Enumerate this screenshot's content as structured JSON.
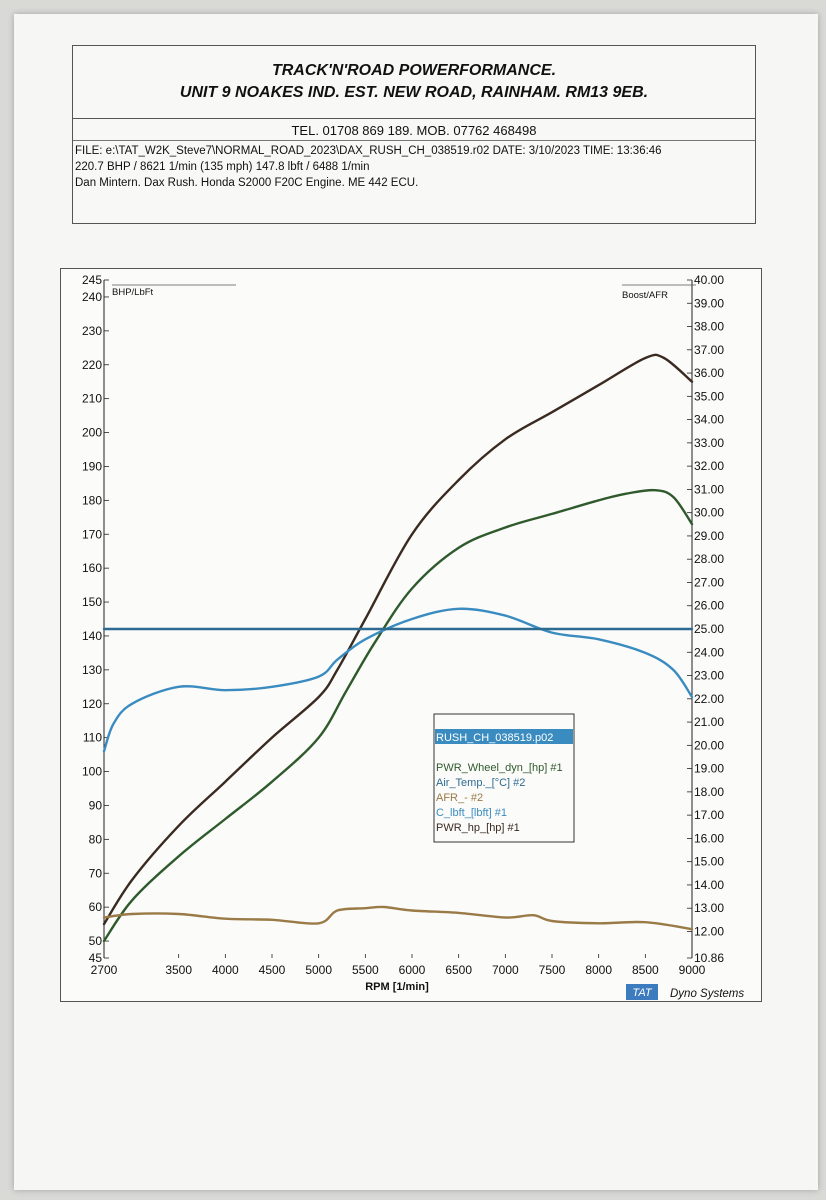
{
  "header": {
    "line1": "TRACK'N'ROAD POWERFORMANCE.",
    "line2": "UNIT 9 NOAKES IND. EST. NEW ROAD, RAINHAM. RM13 9EB."
  },
  "info": {
    "tel": "TEL. 01708 869 189. MOB. 07762 468498",
    "file": "FILE: e:\\TAT_W2K_Steve7\\NORMAL_ROAD_2023\\DAX_RUSH_CH_038519.r02  DATE: 3/10/2023  TIME: 13:36:46",
    "summary": "220.7 BHP / 8621 1/min (135 mph)     147.8 lbft / 6488 1/min",
    "vehicle": "Dan Mintern. Dax Rush. Honda S2000 F20C Engine. ME 442 ECU."
  },
  "chart_data": {
    "type": "line",
    "xlabel": "RPM  [1/min]",
    "ylabel": "BHP/LbFt",
    "y2label": "Boost/AFR",
    "xlim": [
      2700,
      9000
    ],
    "ylim": [
      45,
      245
    ],
    "y2lim": [
      10.86,
      40.0
    ],
    "x_ticks": [
      2700,
      3500,
      4000,
      4500,
      5000,
      5500,
      6000,
      6500,
      7000,
      7500,
      8000,
      8500,
      9000
    ],
    "y_ticks": [
      45,
      50,
      60,
      70,
      80,
      90,
      100,
      110,
      120,
      130,
      140,
      150,
      160,
      170,
      180,
      190,
      200,
      210,
      220,
      230,
      240,
      245
    ],
    "y2_ticks": [
      "10.86",
      "12.00",
      "13.00",
      "14.00",
      "15.00",
      "16.00",
      "17.00",
      "18.00",
      "19.00",
      "20.00",
      "21.00",
      "22.00",
      "23.00",
      "24.00",
      "25.00",
      "26.00",
      "27.00",
      "28.00",
      "29.00",
      "30.00",
      "31.00",
      "32.00",
      "33.00",
      "34.00",
      "35.00",
      "36.00",
      "37.00",
      "38.00",
      "39.00",
      "40.00"
    ],
    "grid": false,
    "legend": {
      "title": "RUSH_CH_038519.p02",
      "entries": [
        "PWR_Wheel_dyn_[hp] #1",
        "Air_Temp._[°C] #2",
        "AFR_- #2",
        "C_lbft_[lbft] #1",
        "PWR_hp_[hp] #1"
      ]
    },
    "series": [
      {
        "name": "PWR_hp_[hp] #1",
        "color": "#3a2a20",
        "axis": "left",
        "x": [
          2700,
          3000,
          3500,
          4000,
          4500,
          5000,
          5200,
          5500,
          6000,
          6500,
          7000,
          7500,
          8000,
          8500,
          8700,
          9000
        ],
        "y": [
          55,
          68,
          84,
          97,
          110,
          122,
          130,
          145,
          170,
          186,
          198,
          206,
          214,
          222,
          222,
          215
        ]
      },
      {
        "name": "PWR_Wheel_dyn_[hp] #1",
        "color": "#2f5a2c",
        "axis": "left",
        "x": [
          2700,
          3000,
          3500,
          4000,
          4500,
          5000,
          5300,
          5600,
          6000,
          6500,
          7000,
          7500,
          8000,
          8300,
          8600,
          8800,
          9000
        ],
        "y": [
          50,
          62,
          75,
          86,
          97,
          110,
          124,
          138,
          154,
          166,
          172,
          176,
          180,
          182,
          183,
          181,
          173
        ]
      },
      {
        "name": "C_lbft_[lbft] #1",
        "color": "#3a8cc0",
        "axis": "left",
        "x": [
          2700,
          2800,
          3000,
          3500,
          4000,
          4500,
          5000,
          5200,
          5500,
          6000,
          6500,
          7000,
          7500,
          8000,
          8500,
          8800,
          9000
        ],
        "y": [
          106,
          114,
          120,
          125,
          124,
          125,
          128,
          133,
          139,
          145,
          148,
          146,
          141,
          139,
          135,
          130,
          122
        ]
      },
      {
        "name": "AFR_- #2",
        "color": "#9a7a46",
        "axis": "right",
        "x": [
          2700,
          3000,
          3500,
          4000,
          4500,
          5000,
          5200,
          5500,
          5700,
          6000,
          6500,
          7000,
          7300,
          7500,
          8000,
          8500,
          9000
        ],
        "y": [
          12.6,
          12.75,
          12.75,
          12.55,
          12.5,
          12.35,
          12.9,
          13.0,
          13.05,
          12.9,
          12.8,
          12.6,
          12.7,
          12.45,
          12.35,
          12.4,
          12.1
        ]
      },
      {
        "name": "Air_Temp._[°C] #2",
        "color": "#2d6a90",
        "axis": "right",
        "x": [
          2700,
          9000
        ],
        "y": [
          25.0,
          25.0
        ]
      }
    ]
  },
  "brand": {
    "badge": "TAT",
    "name": "Dyno Systems",
    "badge_color": "#3d7bbf"
  }
}
